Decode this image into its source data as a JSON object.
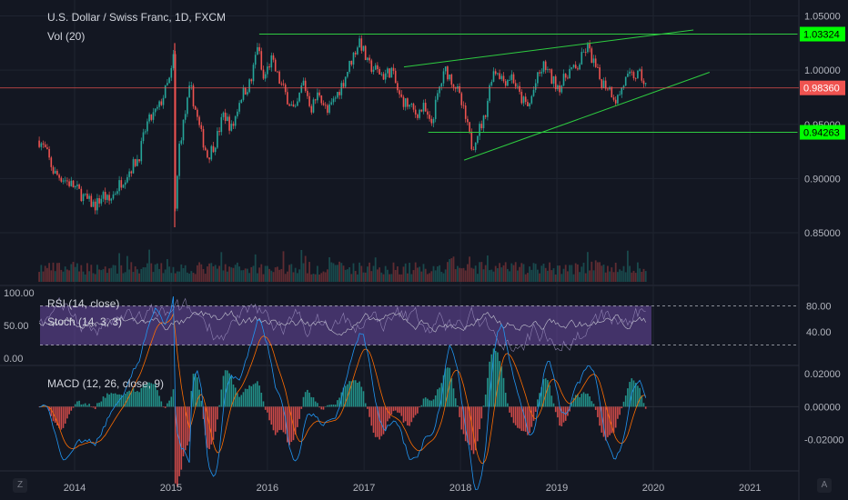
{
  "header": {
    "symbol_title": "U.S. Dollar / Swiss Franc, 1D, FXCM",
    "volume_label": "Vol (20)"
  },
  "rsi_panel": {
    "rsi_label": "RSI (14, close)",
    "stoch_label": "Stoch (14, 3, 3)"
  },
  "macd_panel": {
    "label": "MACD (12, 26, close, 9)"
  },
  "buttons": {
    "left_corner": "Z",
    "right_corner": "A"
  },
  "colors": {
    "background": "#131722",
    "grid": "#1f2430",
    "up_candle": "#26a69a",
    "down_candle": "#ef5350",
    "trendline": "#2ecc40",
    "level_tag": "#00ff00",
    "price_tag": "#ef5350",
    "rsi_band": "#7e57c2",
    "macd_line": "#2196f3",
    "signal_line": "#ff6d00"
  },
  "chart_data": [
    {
      "type": "candlestick",
      "title": "U.S. Dollar / Swiss Franc, 1D, FXCM",
      "x_tick_labels": [
        "2014",
        "2015",
        "2016",
        "2017",
        "2018",
        "2019",
        "2020",
        "2021"
      ],
      "y_tick_labels": [
        "1.05000",
        "1.00000",
        "0.95000",
        "0.90000",
        "0.85000"
      ],
      "ylim": [
        0.803,
        1.058
      ],
      "grid": true,
      "price_path": [
        [
          "2013-08-20",
          0.935
        ],
        [
          "2013-09-15",
          0.925
        ],
        [
          "2013-10-15",
          0.905
        ],
        [
          "2013-11-20",
          0.9
        ],
        [
          "2014-01-01",
          0.892
        ],
        [
          "2014-02-15",
          0.88
        ],
        [
          "2014-03-20",
          0.875
        ],
        [
          "2014-04-20",
          0.885
        ],
        [
          "2014-05-10",
          0.878
        ],
        [
          "2014-06-20",
          0.895
        ],
        [
          "2014-07-20",
          0.905
        ],
        [
          "2014-09-01",
          0.92
        ],
        [
          "2014-10-01",
          0.95
        ],
        [
          "2014-11-15",
          0.965
        ],
        [
          "2014-12-31",
          0.994
        ],
        [
          "2015-01-14",
          1.02
        ],
        [
          "2015-01-15",
          0.86
        ],
        [
          "2015-02-01",
          0.93
        ],
        [
          "2015-03-15",
          0.985
        ],
        [
          "2015-04-20",
          0.945
        ],
        [
          "2015-05-20",
          0.92
        ],
        [
          "2015-06-20",
          0.935
        ],
        [
          "2015-07-20",
          0.96
        ],
        [
          "2015-08-20",
          0.945
        ],
        [
          "2015-09-20",
          0.975
        ],
        [
          "2015-11-01",
          0.99
        ],
        [
          "2015-11-25",
          1.025
        ],
        [
          "2015-12-15",
          0.99
        ],
        [
          "2016-01-15",
          1.01
        ],
        [
          "2016-02-15",
          0.99
        ],
        [
          "2016-03-15",
          0.975
        ],
        [
          "2016-04-15",
          0.96
        ],
        [
          "2016-05-15",
          0.99
        ],
        [
          "2016-06-15",
          0.965
        ],
        [
          "2016-07-15",
          0.98
        ],
        [
          "2016-08-15",
          0.96
        ],
        [
          "2016-09-15",
          0.975
        ],
        [
          "2016-10-15",
          0.99
        ],
        [
          "2016-11-15",
          1.01
        ],
        [
          "2016-12-15",
          1.028
        ],
        [
          "2017-01-15",
          1.005
        ],
        [
          "2017-02-15",
          1.0
        ],
        [
          "2017-03-15",
          0.995
        ],
        [
          "2017-04-15",
          1.0
        ],
        [
          "2017-05-15",
          0.975
        ],
        [
          "2017-06-15",
          0.968
        ],
        [
          "2017-07-15",
          0.96
        ],
        [
          "2017-08-15",
          0.965
        ],
        [
          "2017-09-10",
          0.948
        ],
        [
          "2017-10-15",
          0.985
        ],
        [
          "2017-11-06",
          1.0
        ],
        [
          "2017-12-15",
          0.985
        ],
        [
          "2018-01-15",
          0.96
        ],
        [
          "2018-02-15",
          0.928
        ],
        [
          "2018-03-01",
          0.94
        ],
        [
          "2018-04-01",
          0.955
        ],
        [
          "2018-05-01",
          0.998
        ],
        [
          "2018-05-20",
          1.0
        ],
        [
          "2018-06-15",
          0.99
        ],
        [
          "2018-07-15",
          0.995
        ],
        [
          "2018-08-15",
          0.975
        ],
        [
          "2018-09-15",
          0.965
        ],
        [
          "2018-10-15",
          0.99
        ],
        [
          "2018-11-15",
          1.005
        ],
        [
          "2018-12-15",
          0.99
        ],
        [
          "2019-01-15",
          0.985
        ],
        [
          "2019-02-15",
          1.0
        ],
        [
          "2019-03-15",
          1.0
        ],
        [
          "2019-04-25",
          1.022
        ],
        [
          "2019-05-15",
          1.01
        ],
        [
          "2019-06-15",
          0.99
        ],
        [
          "2019-07-15",
          0.985
        ],
        [
          "2019-08-15",
          0.972
        ],
        [
          "2019-09-15",
          0.99
        ],
        [
          "2019-10-15",
          0.995
        ],
        [
          "2019-11-15",
          0.995
        ],
        [
          "2019-12-05",
          0.984
        ]
      ],
      "horizontal_levels": [
        {
          "value": 1.03324,
          "label": "1.03324"
        },
        {
          "value": 0.94263,
          "label": "0.94263"
        },
        {
          "value": 0.9836,
          "label": "0.98360"
        }
      ],
      "trendlines": [
        {
          "from": [
            "2015-12-01",
            1.03324
          ],
          "to": [
            "2021-06-30",
            1.03324
          ]
        },
        {
          "from": [
            "2017-09-01",
            0.94263
          ],
          "to": [
            "2021-06-30",
            0.94263
          ]
        },
        {
          "from": [
            "2017-06-01",
            1.003
          ],
          "to": [
            "2020-06-01",
            1.037
          ]
        },
        {
          "from": [
            "2018-01-15",
            0.917
          ],
          "to": [
            "2020-08-01",
            0.998
          ]
        }
      ],
      "last_price": 0.9836
    },
    {
      "type": "line",
      "title": "RSI (14, close)",
      "overlay_title": "Stoch (14, 3, 3)",
      "left_tick_labels": [
        "100.00",
        "50.00",
        "0.00"
      ],
      "right_tick_labels": [
        "80.00",
        "40.00"
      ],
      "ylim": [
        0,
        100
      ],
      "band": [
        20,
        80
      ]
    },
    {
      "type": "line",
      "title": "MACD (12, 26, close, 9)",
      "right_tick_labels": [
        "0.02000",
        "0.00000",
        "-0.02000"
      ],
      "ylim": [
        -0.038,
        0.024
      ]
    }
  ]
}
